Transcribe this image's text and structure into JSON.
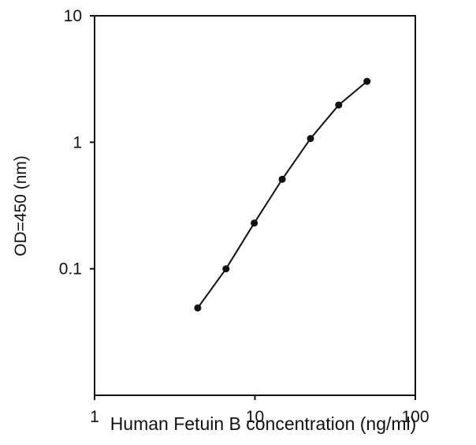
{
  "chart_data": {
    "type": "line",
    "title": "",
    "xlabel": "Human Fetuin B concentration (ng/ml)",
    "ylabel": "OD=450 (nm)",
    "xscale": "log",
    "yscale": "log",
    "xlim": [
      1,
      100
    ],
    "ylim": [
      0.01,
      10
    ],
    "xticks": [
      1,
      10,
      100
    ],
    "xtick_labels": [
      "1",
      "10",
      "100"
    ],
    "yticks": [
      0.1,
      1,
      10
    ],
    "ytick_labels": [
      "0.1",
      "1",
      "10"
    ],
    "grid": false,
    "legend": "none",
    "marker": "circle",
    "line_color": "#111111",
    "series": [
      {
        "x": [
          4.4,
          6.6,
          9.9,
          14.8,
          22.2,
          33.3,
          50.0
        ],
        "y": [
          0.049,
          0.1,
          0.23,
          0.51,
          1.07,
          1.97,
          3.03
        ]
      }
    ]
  }
}
